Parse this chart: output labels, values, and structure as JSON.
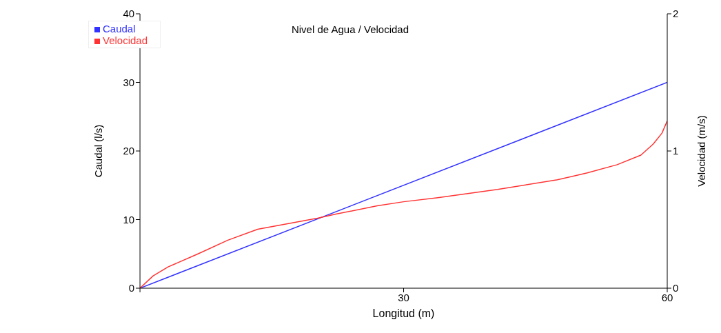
{
  "chart_data": {
    "type": "line",
    "title": "Nivel de Agua / Velocidad",
    "xlabel": "Longitud (m)",
    "ylabel": "Caudal (l/s)",
    "y2label": "Velocidad (m/s)",
    "series": [
      {
        "name": "Caudal",
        "color": "#3333ff",
        "x": [
          0,
          60
        ],
        "values": [
          0,
          30
        ]
      },
      {
        "name": "Velocidad",
        "color": "#ff3333",
        "axis": "y2",
        "x": [
          0,
          1.5,
          3.2,
          6.6,
          10,
          13.4,
          20.2,
          22.3,
          27,
          30,
          33.9,
          40.7,
          47.5,
          50.9,
          54.3,
          57,
          58.4,
          59.4,
          60
        ],
        "values": [
          0,
          0.09,
          0.155,
          0.25,
          0.35,
          0.43,
          0.51,
          0.54,
          0.6,
          0.63,
          0.66,
          0.72,
          0.79,
          0.84,
          0.9,
          0.97,
          1.05,
          1.13,
          1.22
        ]
      }
    ],
    "xlim": [
      0,
      60
    ],
    "xticks": [
      {
        "value": 0,
        "label": null
      },
      30,
      60
    ],
    "ylim": [
      0,
      40
    ],
    "yticks": [
      0,
      10,
      20,
      30,
      40
    ],
    "y2lim": [
      0,
      2
    ],
    "y2ticks": [
      0,
      1,
      2
    ],
    "legend": "top left",
    "grid": false
  }
}
